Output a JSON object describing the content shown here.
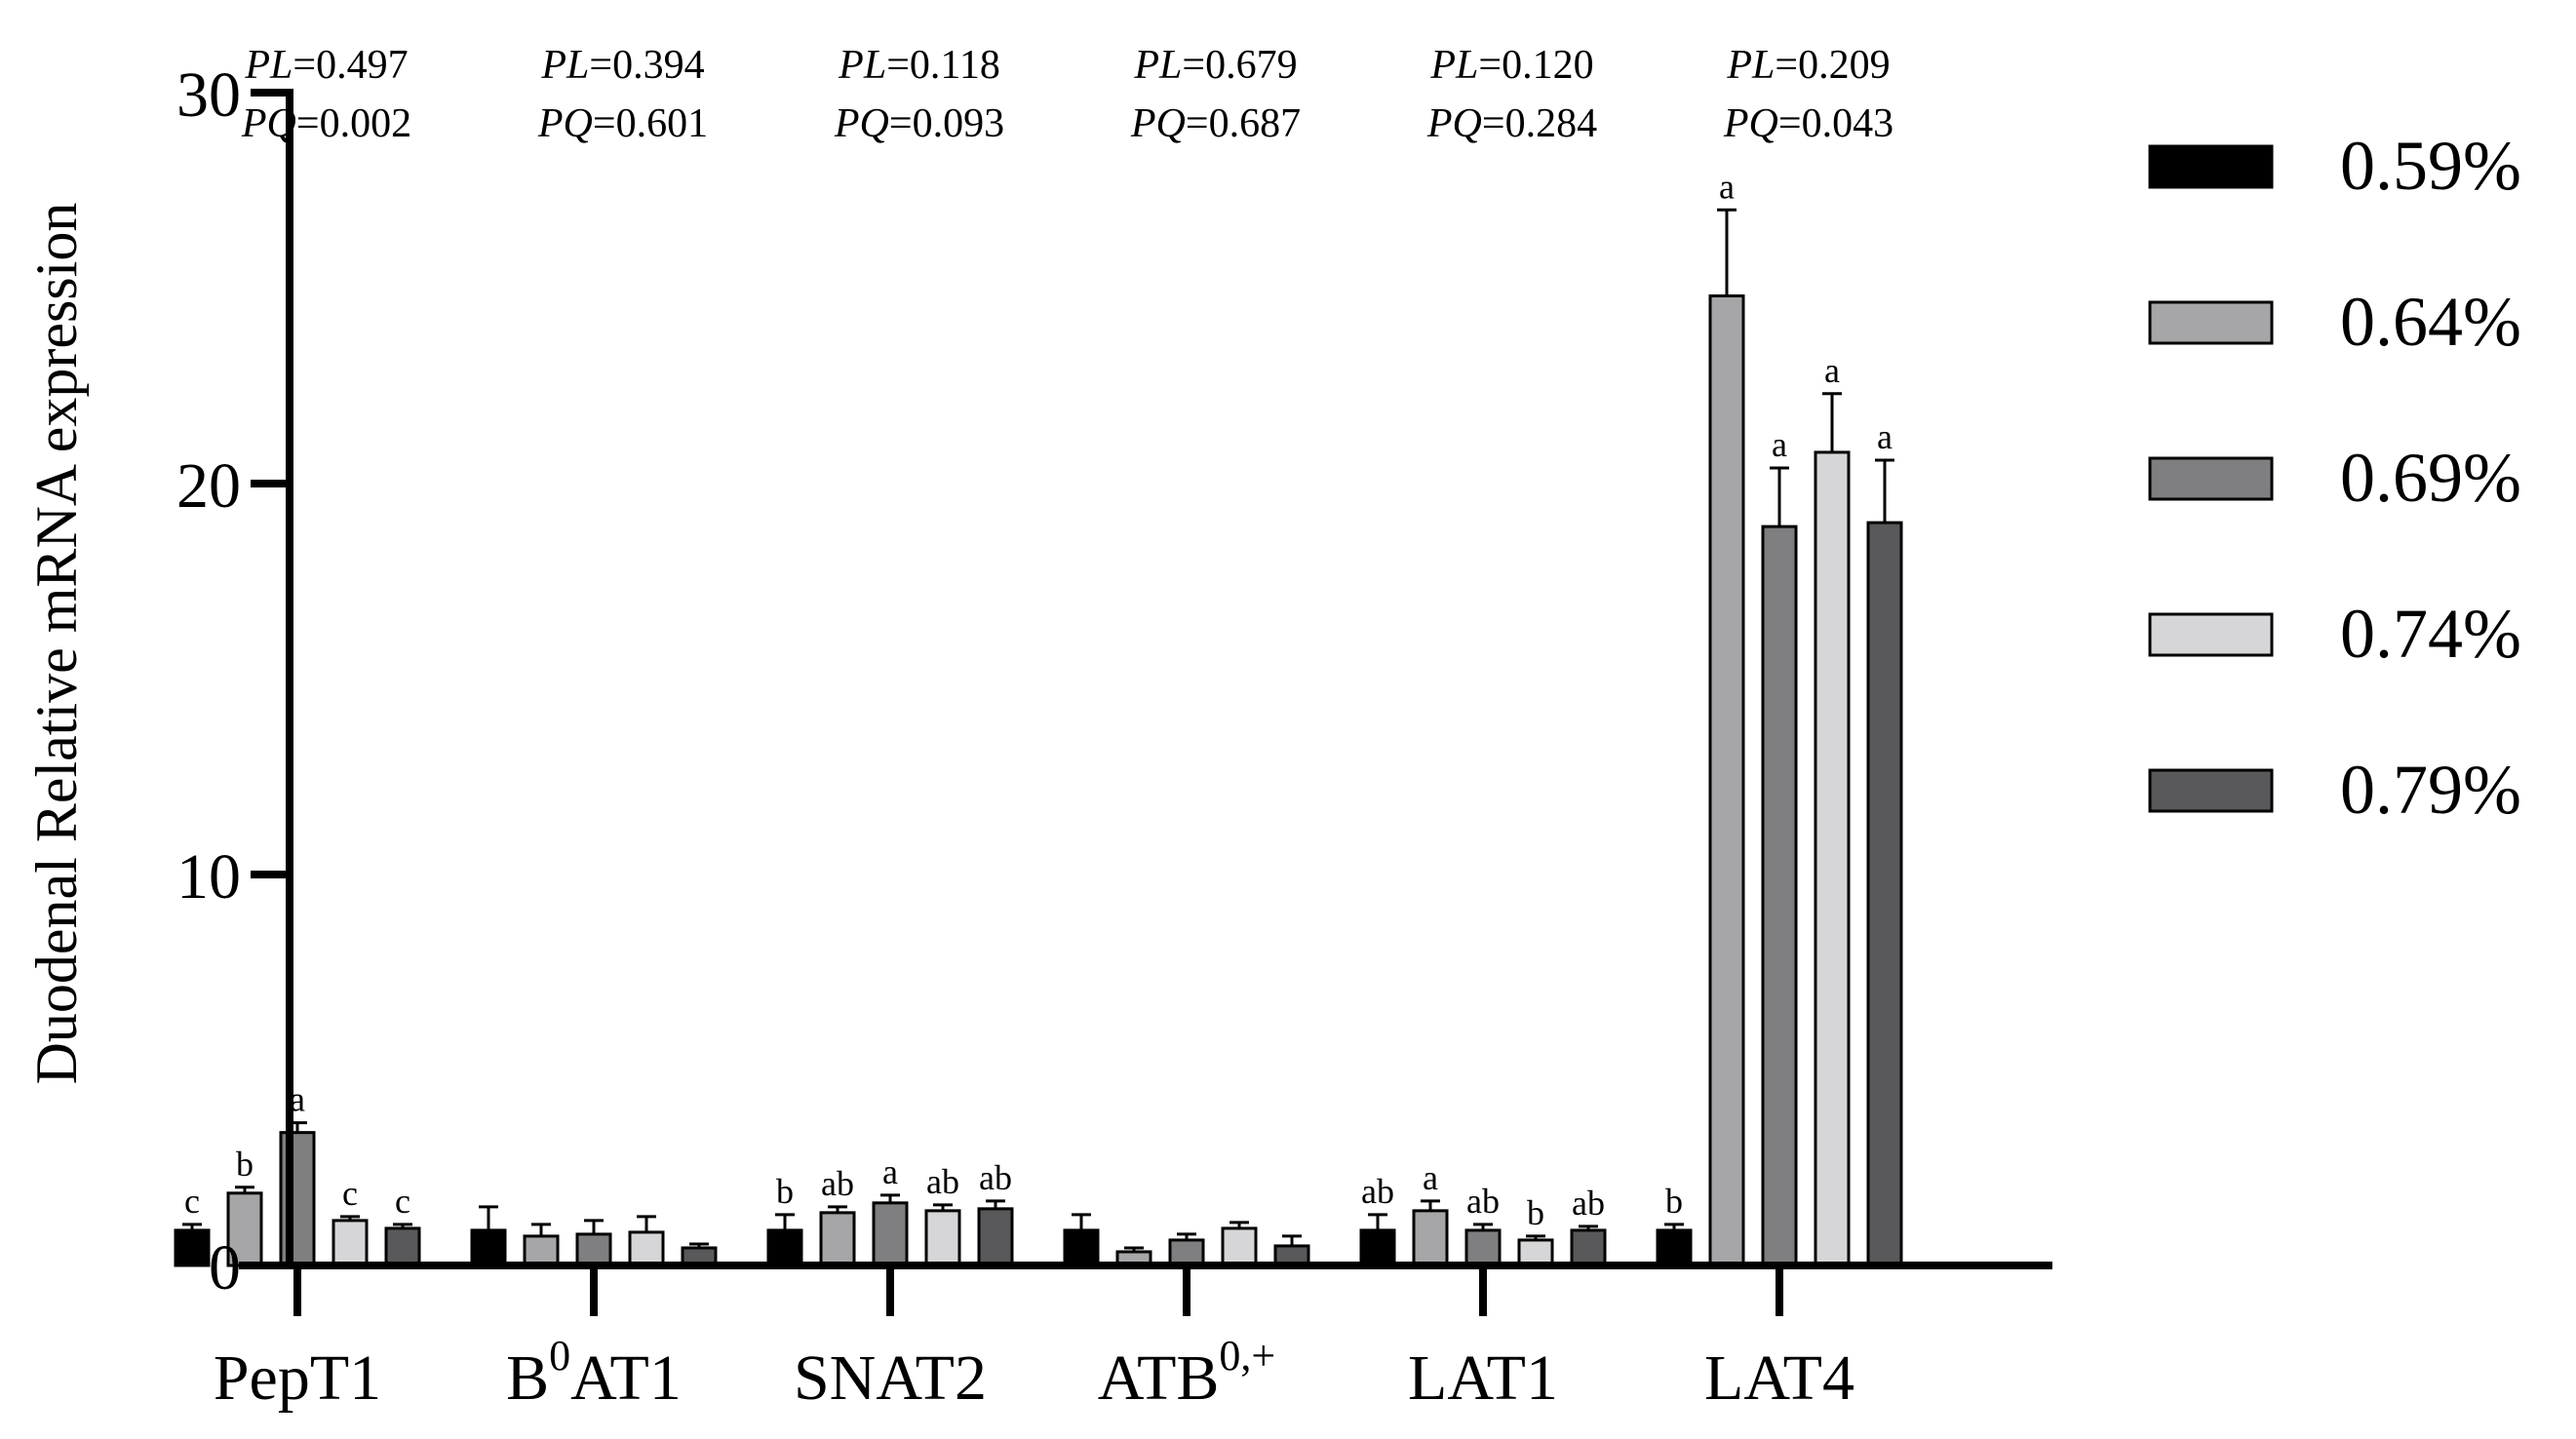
{
  "chart_data": {
    "type": "bar",
    "ylabel": "Duodenal Relative mRNA expression",
    "xlabel": "",
    "ylim": [
      0,
      30
    ],
    "yticks": [
      0,
      10,
      20,
      30
    ],
    "grid": false,
    "legend_position": "right",
    "categories": [
      {
        "name": "PepT1",
        "base": "PepT1",
        "sup": ""
      },
      {
        "name": "B0AT1",
        "base": "B",
        "sup": "0",
        "tail": "AT1"
      },
      {
        "name": "SNAT2",
        "base": "SNAT2",
        "sup": ""
      },
      {
        "name": "ATB0,+",
        "base": "ATB",
        "sup": "0,+"
      },
      {
        "name": "LAT1",
        "base": "LAT1",
        "sup": ""
      },
      {
        "name": "LAT4",
        "base": "LAT4",
        "sup": ""
      }
    ],
    "pvalues": [
      {
        "pl_label": "PL",
        "pl": "=0.497",
        "pq_label": "PQ",
        "pq": "=0.002"
      },
      {
        "pl_label": "PL",
        "pl": "=0.394",
        "pq_label": "PQ",
        "pq": "=0.601"
      },
      {
        "pl_label": "PL",
        "pl": "=0.118",
        "pq_label": "PQ",
        "pq": "=0.093"
      },
      {
        "pl_label": "PL",
        "pl": "=0.679",
        "pq_label": "PQ",
        "pq": "=0.687"
      },
      {
        "pl_label": "PL",
        "pl": "=0.120",
        "pq_label": "PQ",
        "pq": "=0.284"
      },
      {
        "pl_label": "PL",
        "pl": "=0.209",
        "pq_label": "PQ",
        "pq": "=0.043"
      }
    ],
    "series": [
      {
        "name": "0.59%",
        "color": "#000000",
        "values": [
          0.9,
          0.9,
          0.9,
          0.9,
          0.9,
          0.9
        ],
        "errors": [
          0.15,
          0.6,
          0.4,
          0.4,
          0.4,
          0.15
        ],
        "letters": [
          "c",
          "",
          "b",
          "",
          "ab",
          "b"
        ]
      },
      {
        "name": "0.64%",
        "color": "#a6a6a8",
        "values": [
          1.85,
          0.75,
          1.35,
          0.35,
          1.4,
          24.8
        ],
        "errors": [
          0.15,
          0.3,
          0.15,
          0.1,
          0.25,
          2.2
        ],
        "letters": [
          "b",
          "",
          "ab",
          "",
          "a",
          "a"
        ]
      },
      {
        "name": "0.69%",
        "color": "#7f7f81",
        "values": [
          3.4,
          0.8,
          1.6,
          0.65,
          0.9,
          18.9
        ],
        "errors": [
          0.25,
          0.35,
          0.2,
          0.15,
          0.15,
          1.5
        ],
        "letters": [
          "a",
          "",
          "a",
          "",
          "ab",
          "a"
        ]
      },
      {
        "name": "0.74%",
        "color": "#d6d6d8",
        "values": [
          1.15,
          0.85,
          1.4,
          0.95,
          0.65,
          20.8
        ],
        "errors": [
          0.1,
          0.4,
          0.15,
          0.15,
          0.1,
          1.5
        ],
        "letters": [
          "c",
          "",
          "ab",
          "",
          "b",
          "a"
        ]
      },
      {
        "name": "0.79%",
        "color": "#59595b",
        "values": [
          0.95,
          0.45,
          1.45,
          0.5,
          0.9,
          19.0
        ],
        "errors": [
          0.1,
          0.1,
          0.2,
          0.25,
          0.1,
          1.6
        ],
        "letters": [
          "c",
          "",
          "ab",
          "",
          "ab",
          "a"
        ]
      }
    ]
  }
}
